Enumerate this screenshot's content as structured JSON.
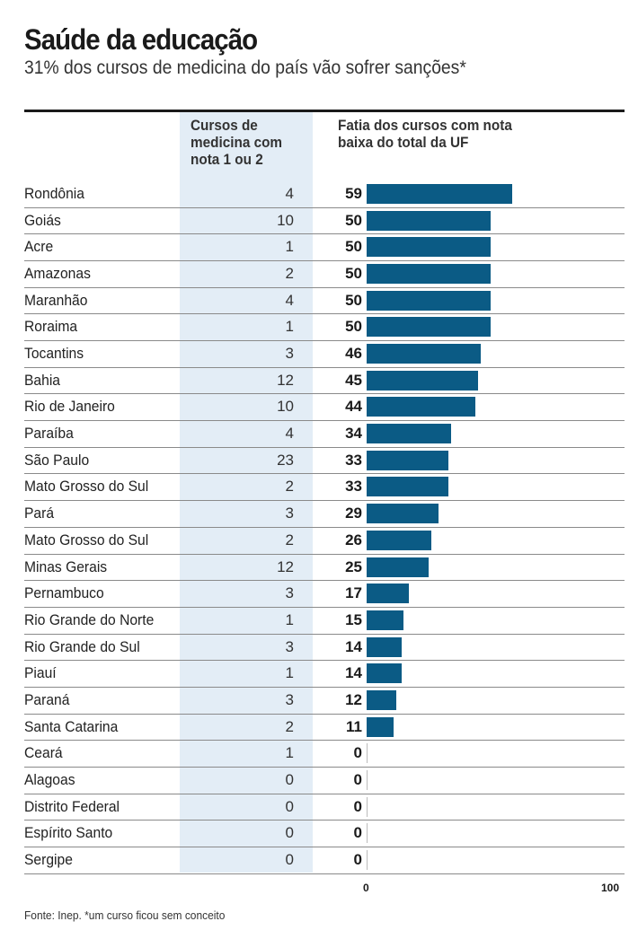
{
  "header": {
    "title": "Saúde da educação",
    "subtitle": "31% dos cursos de medicina do país vão sofrer sanções*"
  },
  "chart_data": {
    "type": "bar",
    "column_headers": [
      "Cursos de medicina com nota 1 ou 2",
      "Fatia dos cursos com nota baixa do total da UF"
    ],
    "categories": [
      "Rondônia",
      "Goiás",
      "Acre",
      "Amazonas",
      "Maranhão",
      "Roraima",
      "Tocantins",
      "Bahia",
      "Rio de Janeiro",
      "Paraíba",
      "São Paulo",
      "Mato Grosso do Sul",
      "Pará",
      "Mato Grosso do Sul",
      "Minas Gerais",
      "Pernambuco",
      "Rio Grande do Norte",
      "Rio Grande do Sul",
      "Piauí",
      "Paraná",
      "Santa Catarina",
      "Ceará",
      "Alagoas",
      "Distrito Federal",
      "Espírito Santo",
      "Sergipe"
    ],
    "counts": [
      4,
      10,
      1,
      2,
      4,
      1,
      3,
      12,
      10,
      4,
      23,
      2,
      3,
      2,
      12,
      3,
      1,
      3,
      1,
      3,
      2,
      1,
      0,
      0,
      0,
      0
    ],
    "values": [
      59,
      50,
      50,
      50,
      50,
      50,
      46,
      45,
      44,
      34,
      33,
      33,
      29,
      26,
      25,
      17,
      15,
      14,
      14,
      12,
      11,
      0,
      0,
      0,
      0,
      0
    ],
    "xlim": [
      0,
      100
    ],
    "xticks": [
      "0",
      "100"
    ],
    "bar_color": "#0b5b85",
    "band_color": "#e3edf6"
  },
  "footer": {
    "source": "Fonte: Inep. *um curso ficou sem conceito"
  }
}
